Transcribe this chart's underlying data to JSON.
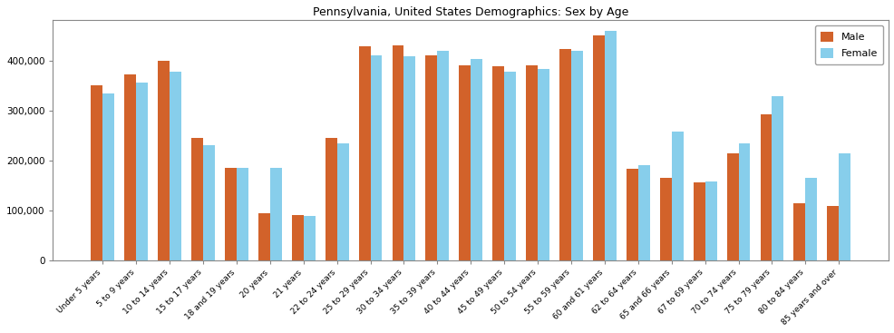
{
  "title": "Pennsylvania, United States Demographics: Sex by Age",
  "categories": [
    "Under 5 years",
    "5 to 9 years",
    "10 to 14 years",
    "15 to 17 years",
    "18 and 19 years",
    "20 years",
    "21 years",
    "22 to 24 years",
    "25 to 29 years",
    "30 to 34 years",
    "35 to 39 years",
    "40 to 44 years",
    "45 to 49 years",
    "50 to 54 years",
    "55 to 59 years",
    "60 and 61 years",
    "62 to 64 years",
    "65 and 66 years",
    "67 to 69 years",
    "70 to 74 years",
    "75 to 79 years",
    "80 to 84 years",
    "85 years and over"
  ],
  "male": [
    350000,
    372000,
    400000,
    245000,
    185000,
    93000,
    90000,
    245000,
    428000,
    430000,
    410000,
    390000,
    388000,
    390000,
    422000,
    450000,
    182000,
    165000,
    155000,
    213000,
    292000,
    113000,
    108000
  ],
  "female": [
    333000,
    356000,
    378000,
    230000,
    185000,
    185000,
    88000,
    233000,
    410000,
    408000,
    420000,
    402000,
    378000,
    382000,
    420000,
    460000,
    190000,
    258000,
    158000,
    234000,
    328000,
    165000,
    213000
  ],
  "male_color": "#D2622A",
  "female_color": "#87CEEB",
  "ylim": [
    0,
    480000
  ],
  "yticks": [
    0,
    100000,
    200000,
    300000,
    400000
  ],
  "ytick_labels": [
    "0",
    "100,000",
    "200,000",
    "300,000",
    "400,000"
  ],
  "legend_labels": [
    "Male",
    "Female"
  ],
  "bar_width": 0.35,
  "figsize": [
    9.87,
    3.67
  ],
  "dpi": 100
}
